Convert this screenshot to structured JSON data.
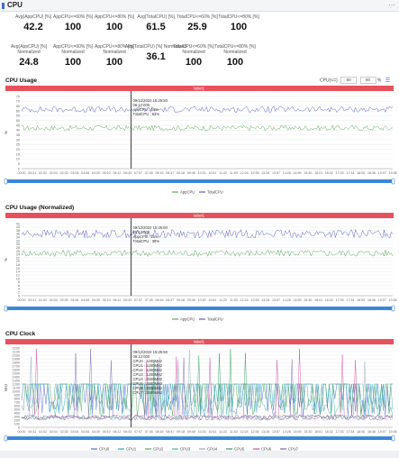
{
  "header": {
    "title": "CPU"
  },
  "stats": [
    {
      "label": "Avg(AppCPU) [%]",
      "value": "42.2"
    },
    {
      "label": "AppCPU<=60% [%]",
      "value": "100"
    },
    {
      "label": "AppCPU<=80% [%]",
      "value": "100"
    },
    {
      "label": "Avg(TotalCPU) [%]",
      "value": "61.5"
    },
    {
      "label": "TotalCPU<=60% [%]",
      "value": "25.9"
    },
    {
      "label": "TotalCPU<=80% [%]",
      "value": "100"
    },
    {
      "label": "Avg(AppCPU) [%] Normalized",
      "value": "24.8"
    },
    {
      "label": "AppCPU<=60% [%] Normalized",
      "value": "100"
    },
    {
      "label": "AppCPU<=80% [%] Normalized",
      "value": "100"
    },
    {
      "label": "Avg(TotalCPU) [%] Normalized",
      "value": "36.1"
    },
    {
      "label": "TotalCPU<=60% [%] Normalized",
      "value": "100"
    },
    {
      "label": "TotalCPU<=80% [%] Normalized",
      "value": "100"
    }
  ],
  "controls": {
    "label": "CPU(<=)",
    "value1": "60",
    "value2": "80",
    "unit": "%"
  },
  "chart_data": [
    {
      "type": "line",
      "title": "CPU Usage",
      "band_label": "label1",
      "ylabel": "%",
      "ylim": [
        0,
        75
      ],
      "yticks": [
        0,
        5,
        10,
        15,
        20,
        25,
        30,
        35,
        40,
        45,
        50,
        55,
        60,
        65,
        70,
        75
      ],
      "x_tick_labels": [
        "00:00",
        "00:31",
        "01:02",
        "01:33",
        "02:04",
        "02:35",
        "03:06",
        "03:37",
        "04:08",
        "04:39",
        "05:10",
        "05:41",
        "06:12",
        "06:43",
        "07:14",
        "07:45",
        "08:16",
        "08:47",
        "09:18",
        "09:49",
        "10:20",
        "10:51",
        "11:22",
        "11:53",
        "12:24",
        "12:55",
        "13:26",
        "13:57",
        "14:28",
        "14:59",
        "15:30",
        "16:01",
        "16:32",
        "17:03",
        "17:34",
        "18:05",
        "18:36",
        "19:07",
        "19:38"
      ],
      "x_tick_display": [
        "00:00",
        "00:31",
        "01:02",
        "02:04",
        "02:35",
        "03:06",
        "04:08",
        "04:39",
        "05:10",
        "06:12",
        "06:43",
        "07:07",
        "07:45",
        "08:16",
        "08:47",
        "09:18",
        "09:49",
        "10:20",
        "10:51",
        "11:22",
        "11:53",
        "12:24",
        "12:55",
        "13:26",
        "13:57",
        "14:28",
        "14:59",
        "15:30",
        "16:01",
        "16:32",
        "17:03",
        "17:34",
        "18:05",
        "18:36",
        "19:07",
        "19:38"
      ],
      "series": [
        {
          "name": "AppCPU",
          "color": "#5aa85a",
          "mean": 42.2,
          "amp": 2.8
        },
        {
          "name": "TotalCPU",
          "color": "#5b5fc7",
          "mean": 61.5,
          "amp": 3.2
        }
      ],
      "cursor_fraction": 0.295,
      "tooltip": [
        "09/12/2022 15:25:50",
        "06:12:000",
        "AppCPU : 44%",
        "TotalCPU : 63%"
      ]
    },
    {
      "type": "line",
      "title": "CPU Usage (Normalized)",
      "band_label": "label1",
      "ylabel": "%",
      "ylim": [
        0,
        42
      ],
      "yticks": [
        0,
        2,
        4,
        6,
        8,
        10,
        12,
        14,
        16,
        18,
        20,
        22,
        24,
        26,
        28,
        30,
        32,
        34,
        36,
        38,
        40,
        42
      ],
      "x_tick_display": [
        "00:00",
        "00:31",
        "01:02",
        "02:04",
        "02:35",
        "03:06",
        "04:08",
        "04:39",
        "05:10",
        "06:12",
        "06:43",
        "07:07",
        "07:45",
        "08:16",
        "08:47",
        "09:18",
        "09:49",
        "10:20",
        "10:51",
        "11:22",
        "11:53",
        "12:24",
        "12:55",
        "13:26",
        "13:57",
        "14:28",
        "14:59",
        "15:30",
        "16:01",
        "16:32",
        "17:03",
        "17:34",
        "18:05",
        "18:36",
        "19:07",
        "19:38"
      ],
      "series": [
        {
          "name": "AppCPU",
          "color": "#5aa85a",
          "mean": 24.8,
          "amp": 2.0
        },
        {
          "name": "TotalCPU",
          "color": "#5b5fc7",
          "mean": 36.1,
          "amp": 2.4
        }
      ],
      "cursor_fraction": 0.295,
      "tooltip": [
        "09/12/2022 15:25:50",
        "06:12:000",
        "AppCPU : 26%",
        "TotalCPU : 38%"
      ]
    },
    {
      "type": "line",
      "title": "CPU Clock",
      "band_label": "label1",
      "ylabel": "MHz",
      "ylim": [
        0,
        2200
      ],
      "yticks": [
        0,
        100,
        200,
        300,
        400,
        500,
        600,
        700,
        800,
        900,
        1000,
        1100,
        1200,
        1300,
        1400,
        1500,
        1600,
        1700,
        1800,
        1900,
        2000,
        2100,
        2200
      ],
      "x_tick_display": [
        "00:00",
        "00:31",
        "01:02",
        "02:04",
        "02:35",
        "03:06",
        "04:08",
        "04:39",
        "05:10",
        "06:12",
        "06:43",
        "07:07",
        "07:45",
        "08:16",
        "08:47",
        "09:18",
        "09:49",
        "10:20",
        "10:51",
        "11:22",
        "11:53",
        "12:24",
        "12:55",
        "13:26",
        "13:57",
        "14:28",
        "14:59",
        "15:30",
        "16:01",
        "16:32",
        "17:03",
        "17:34",
        "18:05",
        "18:36",
        "19:07",
        "19:38"
      ],
      "series": [
        {
          "name": "CPU0",
          "color": "#4d6bd1"
        },
        {
          "name": "CPU1",
          "color": "#3aa1c9"
        },
        {
          "name": "CPU2",
          "color": "#55a85b"
        },
        {
          "name": "CPU3",
          "color": "#4ab5a6"
        },
        {
          "name": "CPU4",
          "color": "#9aa8bf"
        },
        {
          "name": "CPU5",
          "color": "#2e9b62"
        },
        {
          "name": "CPU6",
          "color": "#c94f9e"
        },
        {
          "name": "CPU7",
          "color": "#7b62b8"
        }
      ],
      "cursor_fraction": 0.295,
      "tooltip": [
        "09/12/2022 15:25:50",
        "06:12:000",
        "CPU0 : 1200MHz",
        "CPU1 : 1200MHz",
        "CPU2 : 1200MHz",
        "CPU3 : 1200MHz",
        "CPU4 : 2500MHz",
        "CPU5 : 2500MHz",
        "CPU6 : 2500MHz",
        "CPU7 : 2500MHz"
      ]
    }
  ]
}
